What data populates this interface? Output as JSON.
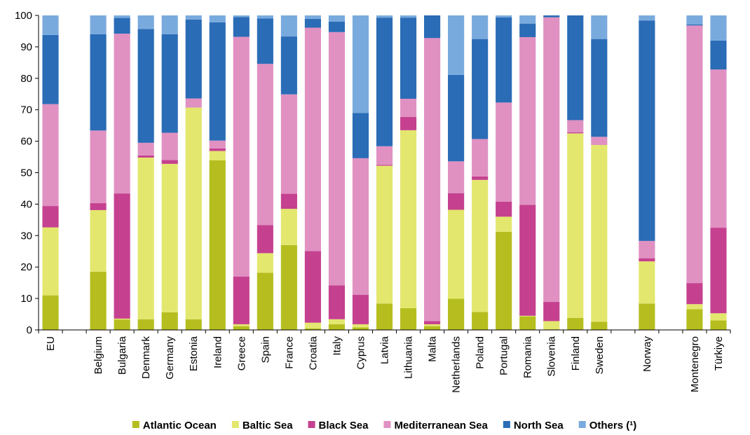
{
  "chart_data": {
    "type": "bar",
    "stacked": true,
    "ylim": [
      0,
      100
    ],
    "yticks": [
      0,
      10,
      20,
      30,
      40,
      50,
      60,
      70,
      80,
      90,
      100
    ],
    "grid": false,
    "legend_position": "bottom",
    "categories": [
      "EU",
      "",
      "Belgium",
      "Bulgaria",
      "Denmark",
      "Germany",
      "Estonia",
      "Ireland",
      "Greece",
      "Spain",
      "France",
      "Croatia",
      "Italy",
      "Cyprus",
      "Latvia",
      "Lithuania",
      "Malta",
      "Netherlands",
      "Poland",
      "Portugal",
      "Romania",
      "Slovenia",
      "Finland",
      "Sweden",
      "",
      "Norway",
      "",
      "Montenegro",
      "Türkiye"
    ],
    "series": [
      {
        "name": "Atlantic Ocean",
        "color": "#b5be1e",
        "values": [
          11,
          null,
          18.5,
          3.3,
          3.4,
          5.6,
          3.4,
          53.9,
          1.2,
          18.2,
          27,
          0.5,
          1.8,
          0.8,
          8.4,
          6.9,
          1.2,
          9.9,
          5.7,
          31.2,
          4.3,
          0.2,
          3.8,
          2.6,
          null,
          8.4,
          null,
          6.6,
          3
        ]
      },
      {
        "name": "Baltic Sea",
        "color": "#e3e76e",
        "values": [
          21.6,
          null,
          19.6,
          0.3,
          51.4,
          47.2,
          67.3,
          3,
          0.6,
          6.2,
          11.5,
          1.8,
          1.6,
          1,
          43.8,
          56.6,
          0.6,
          28.3,
          42,
          4.8,
          0.2,
          2.6,
          58.7,
          56.2,
          null,
          13.4,
          null,
          1.6,
          2.3
        ]
      },
      {
        "name": "Black Sea",
        "color": "#c5418f",
        "values": [
          6.8,
          null,
          2.2,
          39.8,
          0.7,
          1.2,
          0,
          0.8,
          15.2,
          8.9,
          4.8,
          22.8,
          10.8,
          9.4,
          0.3,
          4.2,
          1,
          5.3,
          1.1,
          4.8,
          35.3,
          6.1,
          0.3,
          0,
          null,
          1,
          null,
          6.7,
          27.2
        ]
      },
      {
        "name": "Mediterranean Sea",
        "color": "#e091c2",
        "values": [
          32.4,
          null,
          23.1,
          50.8,
          4,
          8.7,
          2.9,
          2.5,
          76.2,
          51.3,
          31.6,
          71,
          80.5,
          43.4,
          5.9,
          5.8,
          90,
          10.1,
          11.9,
          31.5,
          53.3,
          90.5,
          3.9,
          2.6,
          null,
          5.5,
          null,
          81.9,
          50.3
        ]
      },
      {
        "name": "North Sea",
        "color": "#2a6cb6",
        "values": [
          22,
          null,
          30.6,
          5,
          36.2,
          31.3,
          25.1,
          37.6,
          6.3,
          14.4,
          18.4,
          2.8,
          3.3,
          14.4,
          40.9,
          25.8,
          7.2,
          27.5,
          31.8,
          27.1,
          4.3,
          0.6,
          33.3,
          31.1,
          null,
          70.1,
          null,
          0.3,
          9.2
        ]
      },
      {
        "name": "Others (¹)",
        "color": "#79aade",
        "values": [
          6.2,
          null,
          6,
          0.8,
          4.3,
          6,
          1.3,
          2.2,
          0.5,
          1,
          6.7,
          1.1,
          2,
          31,
          0.7,
          0.7,
          0,
          18.9,
          7.5,
          0.6,
          2.6,
          0,
          0,
          7.5,
          null,
          1.6,
          null,
          2.9,
          8
        ]
      }
    ]
  }
}
